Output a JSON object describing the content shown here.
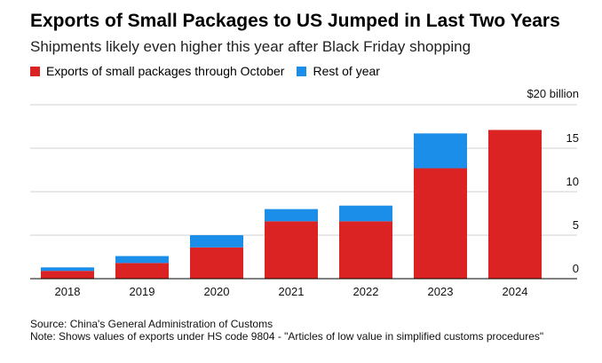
{
  "title": "Exports of Small Packages to US Jumped in Last Two Years",
  "subtitle": "Shipments likely even higher this year after Black Friday shopping",
  "legend": [
    {
      "label": "Exports of small packages through October",
      "color": "#dc2323"
    },
    {
      "label": "Rest of year",
      "color": "#1a8ee8"
    }
  ],
  "footer": {
    "source": "Source: China's General Administration of Customs",
    "note": "Note: Shows values of exports under HS code 9804 - \"Articles of low value in simplified customs procedures\""
  },
  "chart_data": {
    "type": "bar",
    "stacked": true,
    "categories": [
      "2018",
      "2019",
      "2020",
      "2021",
      "2022",
      "2023",
      "2024"
    ],
    "series": [
      {
        "name": "Exports of small packages through October",
        "color": "#dc2323",
        "values": [
          0.9,
          1.8,
          3.6,
          6.6,
          6.6,
          12.7,
          17.1
        ]
      },
      {
        "name": "Rest of year",
        "color": "#1a8ee8",
        "values": [
          0.4,
          0.8,
          1.4,
          1.4,
          1.8,
          4.0,
          0
        ]
      }
    ],
    "ylim": [
      0,
      20
    ],
    "yticks": [
      {
        "value": 0,
        "label": "0"
      },
      {
        "value": 5,
        "label": "5"
      },
      {
        "value": 10,
        "label": "10"
      },
      {
        "value": 15,
        "label": "15"
      },
      {
        "value": 20,
        "label": "$20 billion"
      }
    ],
    "grid": true,
    "yaxis_position": "right"
  }
}
